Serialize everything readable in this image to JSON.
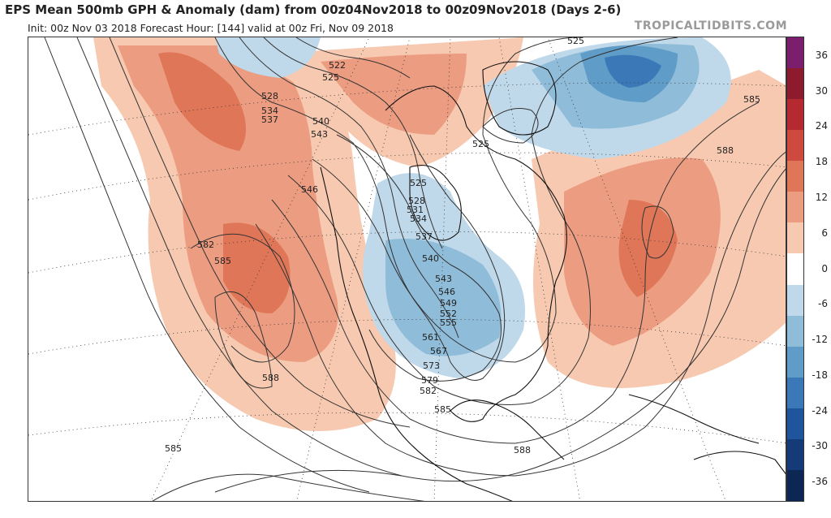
{
  "header": {
    "title": "EPS Mean 500mb GPH & Anomaly (dam) from 00z04Nov2018 to 00z09Nov2018 (Days 2-6)",
    "subtitle": "Init: 00z Nov 03 2018   Forecast Hour: [144]   valid at 00z Fri, Nov 09 2018",
    "brand": "TROPICALTIDBITS.COM"
  },
  "colorbar": {
    "ticks": [
      "36",
      "30",
      "24",
      "18",
      "12",
      "6",
      "0",
      "-6",
      "-12",
      "-18",
      "-24",
      "-30",
      "-36"
    ],
    "colors": [
      "#7b1e6e",
      "#8e1a2e",
      "#b52a30",
      "#cf4a3e",
      "#e07658",
      "#ec9c80",
      "#f7c9b0",
      "#ffffff",
      "#c0d9ea",
      "#8fbcd9",
      "#5f9cc8",
      "#3a78b8",
      "#1f559c",
      "#143a78",
      "#0d2754"
    ]
  },
  "contour_labels": [
    "522",
    "525",
    "528",
    "531",
    "534",
    "537",
    "540",
    "543",
    "546",
    "549",
    "552",
    "555",
    "561",
    "567",
    "573",
    "579",
    "582",
    "585",
    "588"
  ],
  "map_labels": [
    {
      "text": "525",
      "anchor": "north-greenland"
    },
    {
      "text": "522",
      "anchor": "alaska-north"
    },
    {
      "text": "525",
      "anchor": "alaska-north"
    },
    {
      "text": "528",
      "anchor": "gulf-of-alaska"
    },
    {
      "text": "534",
      "anchor": "gulf-of-alaska"
    },
    {
      "text": "537",
      "anchor": "gulf-of-alaska"
    },
    {
      "text": "540",
      "anchor": "bc-coast"
    },
    {
      "text": "543",
      "anchor": "bc-coast"
    },
    {
      "text": "546",
      "anchor": "pacific-northwest"
    },
    {
      "text": "585",
      "anchor": "east-pacific"
    },
    {
      "text": "582",
      "anchor": "east-pacific"
    },
    {
      "text": "588",
      "anchor": "subtropical-pacific"
    },
    {
      "text": "585",
      "anchor": "tropical-pacific"
    },
    {
      "text": "525",
      "anchor": "hudson-bay"
    },
    {
      "text": "528",
      "anchor": "hudson-bay"
    },
    {
      "text": "531",
      "anchor": "hudson-bay"
    },
    {
      "text": "534",
      "anchor": "hudson-bay"
    },
    {
      "text": "537",
      "anchor": "central-canada"
    },
    {
      "text": "540",
      "anchor": "central-canada"
    },
    {
      "text": "543",
      "anchor": "northern-plains"
    },
    {
      "text": "546",
      "anchor": "upper-midwest"
    },
    {
      "text": "549",
      "anchor": "upper-midwest"
    },
    {
      "text": "552",
      "anchor": "central-plains"
    },
    {
      "text": "555",
      "anchor": "central-plains"
    },
    {
      "text": "561",
      "anchor": "southern-plains"
    },
    {
      "text": "567",
      "anchor": "southern-plains"
    },
    {
      "text": "573",
      "anchor": "texas"
    },
    {
      "text": "579",
      "anchor": "texas"
    },
    {
      "text": "582",
      "anchor": "gulf-of-mexico"
    },
    {
      "text": "585",
      "anchor": "gulf-of-mexico"
    },
    {
      "text": "588",
      "anchor": "caribbean"
    },
    {
      "text": "525",
      "anchor": "greenland-coast"
    },
    {
      "text": "585",
      "anchor": "north-atlantic"
    },
    {
      "text": "588",
      "anchor": "western-atlantic"
    }
  ]
}
